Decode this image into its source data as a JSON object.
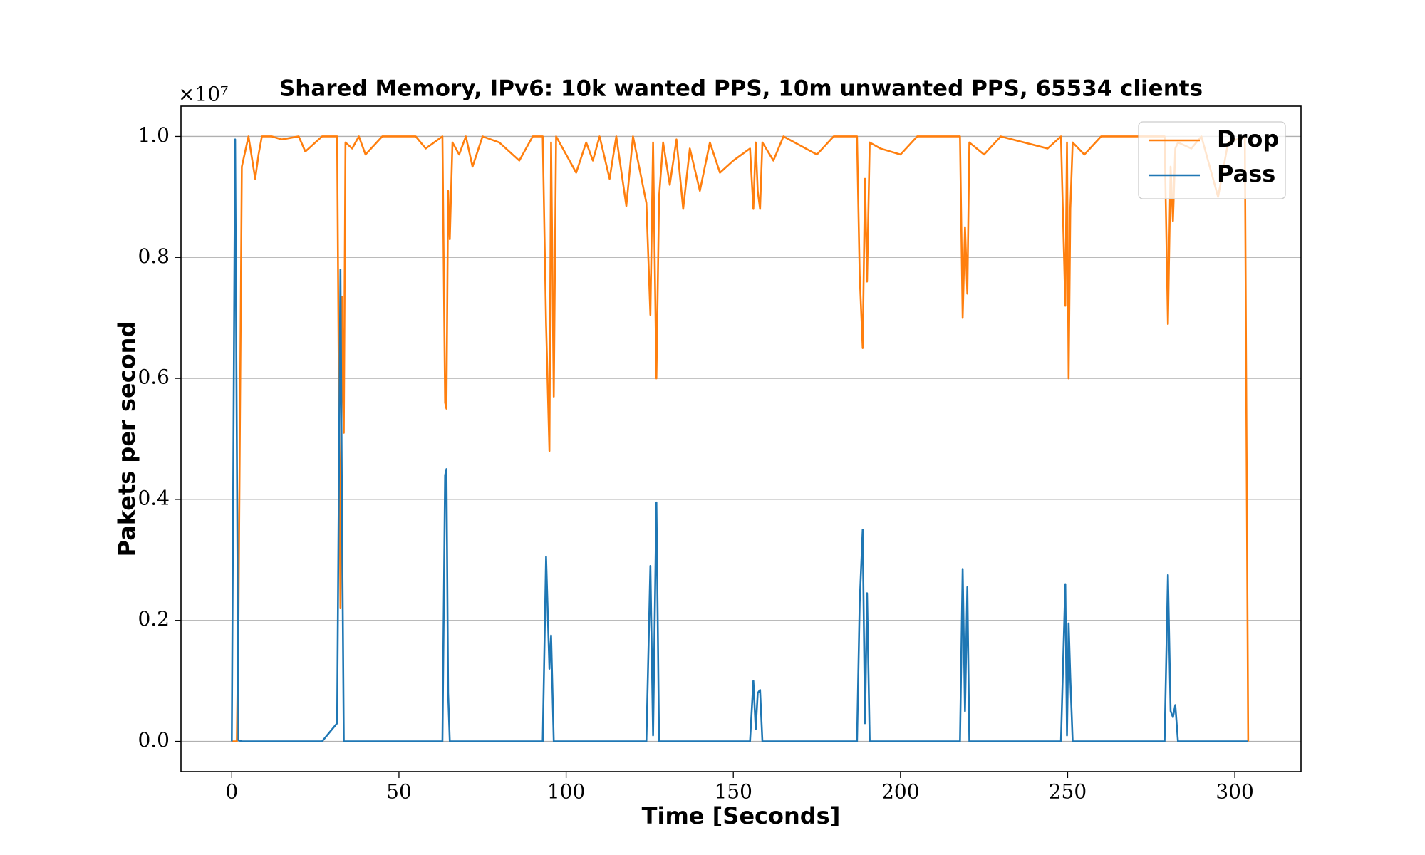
{
  "chart_data": {
    "type": "line",
    "title": "Shared Memory, IPv6: 10k wanted PPS, 10m unwanted PPS, 65534 clients",
    "x_label": "Time [Seconds]",
    "y_label": "Pakets per second",
    "y_offset_label": "×10⁷",
    "xlim": [
      -15.2,
      319.8
    ],
    "ylim": [
      -500000,
      10500000
    ],
    "xticks": [
      0,
      50,
      100,
      150,
      200,
      250,
      300
    ],
    "yticks": [
      {
        "value": 0,
        "label": "0.0"
      },
      {
        "value": 2000000,
        "label": "0.2"
      },
      {
        "value": 4000000,
        "label": "0.4"
      },
      {
        "value": 6000000,
        "label": "0.6"
      },
      {
        "value": 8000000,
        "label": "0.8"
      },
      {
        "value": 10000000,
        "label": "1.0"
      }
    ],
    "grid": "y",
    "legend": "upper right",
    "x": [
      0,
      1,
      1.5,
      2,
      3,
      5,
      7,
      8,
      9,
      12,
      15,
      20,
      22,
      25,
      27,
      31.5,
      32.5,
      33,
      33.5,
      34,
      36,
      38,
      40,
      45,
      55,
      58,
      63,
      63.8,
      64.2,
      64.7,
      65.2,
      66,
      68,
      70,
      72,
      75,
      80,
      86,
      90,
      93,
      94,
      95,
      95.5,
      96.3,
      97,
      100,
      103,
      106,
      108,
      110,
      113,
      115,
      118,
      120,
      124,
      125.2,
      126,
      127,
      127.8,
      129,
      131,
      133,
      135,
      137,
      140,
      143,
      146,
      150,
      155,
      156,
      156.7,
      157.3,
      158,
      158.7,
      162,
      165,
      175,
      180,
      187,
      187.8,
      188.7,
      189.4,
      190,
      190.8,
      194,
      200,
      205,
      217.8,
      218.6,
      219.3,
      220,
      220.6,
      225,
      230,
      244,
      248,
      249.3,
      249.8,
      250.3,
      250.8,
      251.5,
      255,
      260,
      279,
      280,
      280.8,
      281.5,
      282.2,
      283,
      287,
      290,
      295,
      298,
      303,
      304
    ],
    "series": [
      {
        "name": "Drop",
        "color": "#ff7f0e",
        "values": [
          0,
          0,
          0,
          2000000,
          9500000,
          10000000,
          9300000,
          9700000,
          10000000,
          10000000,
          9950000,
          10000000,
          9750000,
          9900000,
          10000000,
          10000000,
          2200000,
          7350000,
          5100000,
          9900000,
          9800000,
          10000000,
          9700000,
          10000000,
          10000000,
          9800000,
          10000000,
          5600000,
          5500000,
          9100000,
          8300000,
          9900000,
          9700000,
          10000000,
          9500000,
          10000000,
          9900000,
          9600000,
          10000000,
          10000000,
          6900000,
          4800000,
          9900000,
          5700000,
          10000000,
          9700000,
          9400000,
          9900000,
          9600000,
          10000000,
          9300000,
          10000000,
          8850000,
          10000000,
          8900000,
          7050000,
          9900000,
          6000000,
          9000000,
          9900000,
          9200000,
          9950000,
          8800000,
          9800000,
          9100000,
          9900000,
          9400000,
          9600000,
          9800000,
          8800000,
          9900000,
          9100000,
          8800000,
          9900000,
          9600000,
          10000000,
          9700000,
          10000000,
          10000000,
          7700000,
          6500000,
          9300000,
          7600000,
          9900000,
          9800000,
          9700000,
          10000000,
          10000000,
          7000000,
          8500000,
          7400000,
          9900000,
          9700000,
          10000000,
          9800000,
          10000000,
          7200000,
          9900000,
          6000000,
          8800000,
          9900000,
          9700000,
          10000000,
          10000000,
          6900000,
          9500000,
          8600000,
          9800000,
          9900000,
          9800000,
          10000000,
          9000000,
          9900000,
          10000000,
          0
        ]
      },
      {
        "name": "Pass",
        "color": "#1f77b4",
        "values": [
          0,
          9950000,
          5000000,
          20000,
          0,
          0,
          0,
          0,
          0,
          0,
          0,
          0,
          0,
          0,
          0,
          300000,
          7800000,
          3500000,
          0,
          0,
          0,
          0,
          0,
          0,
          0,
          0,
          0,
          4400000,
          4500000,
          800000,
          0,
          0,
          0,
          0,
          0,
          0,
          0,
          0,
          0,
          0,
          3050000,
          1200000,
          1750000,
          0,
          0,
          0,
          0,
          0,
          0,
          0,
          0,
          0,
          0,
          0,
          0,
          2900000,
          100000,
          3950000,
          0,
          0,
          0,
          0,
          0,
          0,
          0,
          0,
          0,
          0,
          0,
          1000000,
          200000,
          800000,
          850000,
          0,
          0,
          0,
          0,
          0,
          0,
          2300000,
          3500000,
          300000,
          2450000,
          0,
          0,
          0,
          0,
          0,
          2850000,
          500000,
          2550000,
          0,
          0,
          0,
          0,
          0,
          2600000,
          100000,
          1950000,
          1050000,
          0,
          0,
          0,
          0,
          2750000,
          500000,
          400000,
          600000,
          0,
          0,
          0,
          0,
          0,
          0,
          0
        ]
      }
    ]
  }
}
